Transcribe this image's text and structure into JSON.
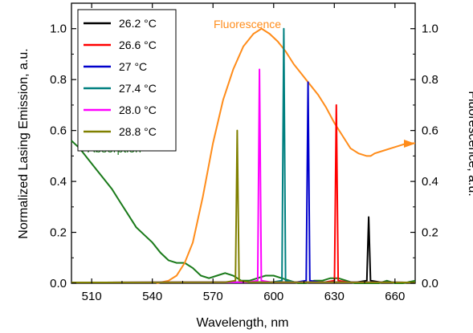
{
  "chart_data": {
    "type": "line",
    "xlabel": "Wavelength, nm",
    "ylabel_left": "Normalized Lasing Emission, a.u.",
    "ylabel_right": "Fluorescence, a.u.",
    "xlim": [
      500,
      670
    ],
    "ylim": [
      0,
      1.1
    ],
    "x_ticks": [
      510,
      540,
      570,
      600,
      630,
      660
    ],
    "x_tick_labels": [
      "510",
      "540",
      "570",
      "600",
      "630",
      "660"
    ],
    "y_ticks": [
      0.0,
      0.2,
      0.4,
      0.6,
      0.8,
      1.0
    ],
    "y_tick_labels": [
      "0.0",
      "0.2",
      "0.4",
      "0.6",
      "0.8",
      "1.0"
    ],
    "legend_position": "top-left",
    "annotations": [
      {
        "text": "Fluorescence",
        "color": "#ff8c1a"
      },
      {
        "text": "Absorption",
        "color": "#1a7a1a"
      }
    ],
    "series": [
      {
        "name": "26.2 °C",
        "color": "#000000",
        "peak_x": 647,
        "peak_y": 0.26
      },
      {
        "name": "26.6 °C",
        "color": "#ff0000",
        "peak_x": 631,
        "peak_y": 0.7
      },
      {
        "name": "27 °C",
        "color": "#0000cc",
        "peak_x": 617,
        "peak_y": 0.79
      },
      {
        "name": "27.4 °C",
        "color": "#008080",
        "peak_x": 605,
        "peak_y": 1.0
      },
      {
        "name": "28.0 °C",
        "color": "#ff00ff",
        "peak_x": 593,
        "peak_y": 0.84
      },
      {
        "name": "28.8 °C",
        "color": "#808000",
        "peak_x": 582,
        "peak_y": 0.6
      }
    ],
    "fluorescence": {
      "color": "#ff8c1a",
      "x": [
        542,
        548,
        552,
        556,
        560,
        565,
        570,
        575,
        580,
        585,
        590,
        594,
        598,
        602,
        606,
        610,
        614,
        618,
        622,
        626,
        630,
        634,
        638,
        642,
        646,
        648,
        650,
        654,
        658,
        662,
        666,
        670
      ],
      "y": [
        0.0,
        0.01,
        0.03,
        0.08,
        0.16,
        0.34,
        0.55,
        0.72,
        0.84,
        0.93,
        0.98,
        1.0,
        0.98,
        0.95,
        0.91,
        0.86,
        0.82,
        0.78,
        0.74,
        0.69,
        0.63,
        0.58,
        0.53,
        0.51,
        0.5,
        0.5,
        0.51,
        0.52,
        0.53,
        0.54,
        0.55,
        0.55
      ]
    },
    "absorption": {
      "color": "#1a7a1a",
      "x": [
        500,
        504,
        508,
        512,
        516,
        520,
        524,
        528,
        532,
        536,
        540,
        544,
        548,
        552,
        556,
        560,
        564,
        568,
        572,
        576,
        580,
        584,
        588,
        592,
        596,
        600,
        604,
        608,
        612,
        616,
        620,
        624,
        628,
        632,
        636,
        640,
        644,
        648,
        652,
        656,
        660,
        664,
        670
      ],
      "y": [
        0.56,
        0.53,
        0.49,
        0.45,
        0.41,
        0.37,
        0.32,
        0.27,
        0.22,
        0.19,
        0.16,
        0.12,
        0.09,
        0.08,
        0.08,
        0.06,
        0.03,
        0.02,
        0.03,
        0.04,
        0.03,
        0.01,
        0.01,
        0.02,
        0.03,
        0.03,
        0.02,
        0.01,
        0.0,
        0.0,
        0.01,
        0.01,
        0.02,
        0.02,
        0.01,
        0.0,
        0.0,
        0.0,
        0.0,
        0.01,
        0.0,
        0.0,
        0.01
      ]
    }
  }
}
